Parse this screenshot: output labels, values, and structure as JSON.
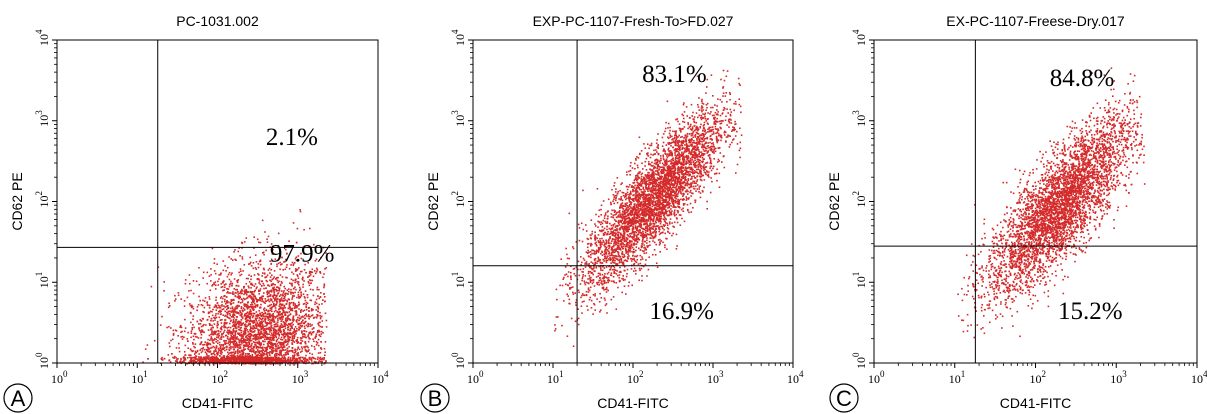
{
  "chart_data": [
    {
      "type": "scatter",
      "panel_label": "A",
      "title": "PC-1031.002",
      "xlabel": "CD41-FITC",
      "ylabel": "CD62 PE",
      "x_scale": "log",
      "y_scale": "log",
      "xlim": [
        1,
        10000
      ],
      "ylim": [
        1,
        10000
      ],
      "quadrant_gate": {
        "x": 18,
        "y": 27
      },
      "annotations": [
        {
          "text": "2.1%",
          "quadrant": "upper-right",
          "value": 2.1
        },
        {
          "text": "97.9%",
          "quadrant": "lower-right",
          "value": 97.9
        }
      ],
      "population": {
        "x_center": 300,
        "y_center": 2.2,
        "x_spread": 0.45,
        "y_spread": 0.45,
        "tilt": 0.2,
        "events": 4200,
        "y_floor": 1
      }
    },
    {
      "type": "scatter",
      "panel_label": "B",
      "title": "EXP-PC-1107-Fresh-To>FD.027",
      "xlabel": "CD41-FITC",
      "ylabel": "CD62 PE",
      "x_scale": "log",
      "y_scale": "log",
      "xlim": [
        1,
        10000
      ],
      "ylim": [
        1,
        10000
      ],
      "quadrant_gate": {
        "x": 20,
        "y": 16
      },
      "annotations": [
        {
          "text": "83.1%",
          "quadrant": "upper-right",
          "value": 83.1
        },
        {
          "text": "16.9%",
          "quadrant": "lower-right",
          "value": 16.9
        }
      ],
      "population": {
        "x_center": 180,
        "y_center": 110,
        "x_spread": 0.45,
        "y_spread": 0.55,
        "tilt": 0.85,
        "events": 4200,
        "y_floor": 1
      }
    },
    {
      "type": "scatter",
      "panel_label": "C",
      "title": "EX-PC-1107-Freese-Dry.017",
      "xlabel": "CD41-FITC",
      "ylabel": "CD62 PE",
      "x_scale": "log",
      "y_scale": "log",
      "xlim": [
        1,
        10000
      ],
      "ylim": [
        1,
        10000
      ],
      "quadrant_gate": {
        "x": 18,
        "y": 28
      },
      "annotations": [
        {
          "text": "84.8%",
          "quadrant": "upper-right",
          "value": 84.8
        },
        {
          "text": "15.2%",
          "quadrant": "lower-right",
          "value": 15.2
        }
      ],
      "population": {
        "x_center": 200,
        "y_center": 90,
        "x_spread": 0.45,
        "y_spread": 0.55,
        "tilt": 0.8,
        "events": 4200,
        "y_floor": 1
      }
    }
  ],
  "colors": {
    "dots": "#d42a2a",
    "axes": "#000000"
  }
}
